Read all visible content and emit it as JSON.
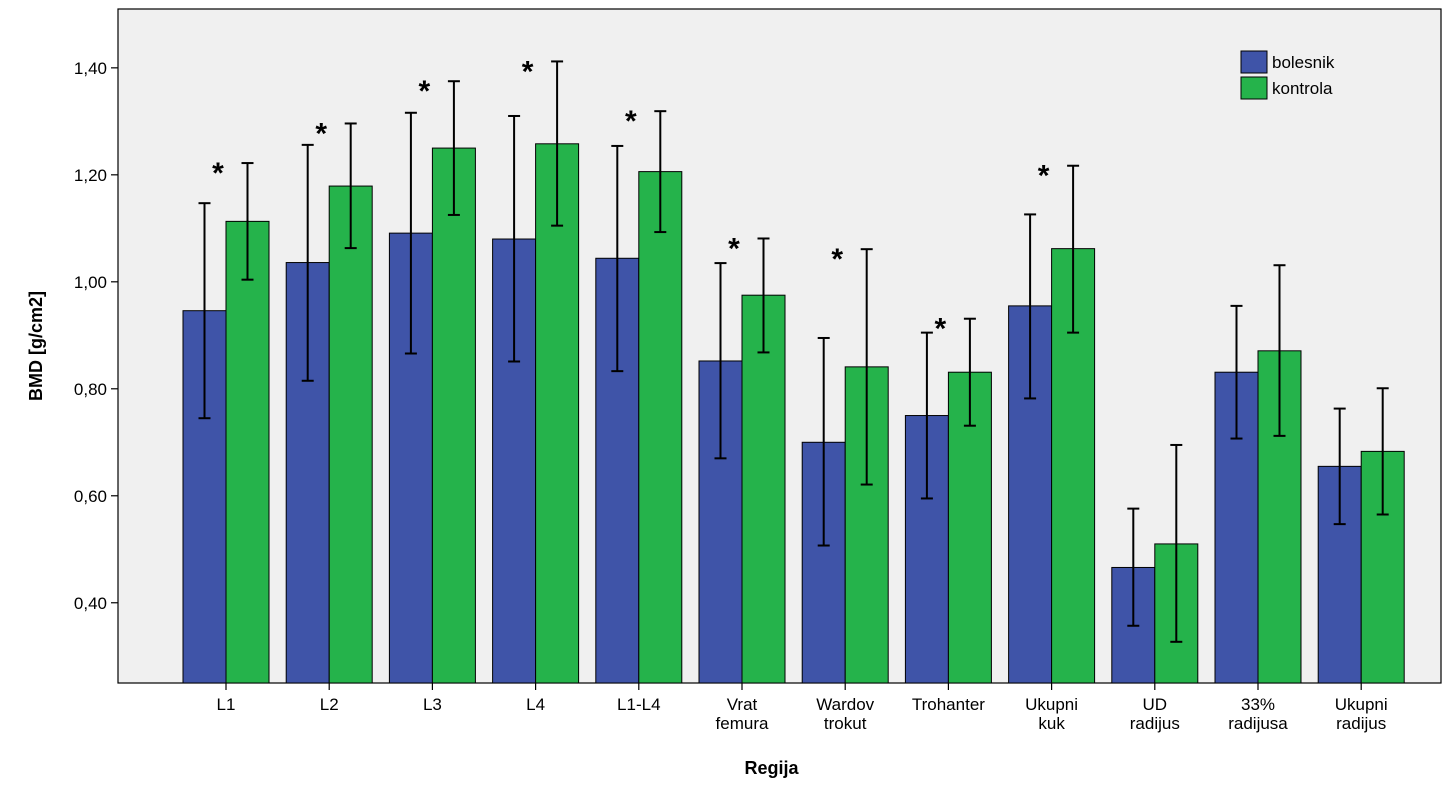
{
  "chart_data": {
    "type": "bar",
    "xlabel": "Regija",
    "ylabel": "BMD [g/cm2]",
    "ylim": [
      0.25,
      1.51
    ],
    "yticks": [
      "0,40",
      "0,60",
      "0,80",
      "1,00",
      "1,20",
      "1,40"
    ],
    "ytick_values": [
      0.4,
      0.6,
      0.8,
      1.0,
      1.2,
      1.4
    ],
    "categories": [
      [
        "L1"
      ],
      [
        "L2"
      ],
      [
        "L3"
      ],
      [
        "L4"
      ],
      [
        "L1-L4"
      ],
      [
        "Vrat",
        "femura"
      ],
      [
        "Wardov",
        "trokut"
      ],
      [
        "Trohanter"
      ],
      [
        "Ukupni",
        "kuk"
      ],
      [
        "UD",
        "radijus"
      ],
      [
        "33%",
        "radijusa"
      ],
      [
        "Ukupni",
        "radijus"
      ]
    ],
    "series": [
      {
        "name": "bolesnik",
        "color": "#3f54a8",
        "values": [
          0.946,
          1.036,
          1.091,
          1.08,
          1.044,
          0.852,
          0.7,
          0.75,
          0.955,
          0.466,
          0.831,
          0.655
        ],
        "err_low": [
          0.745,
          0.815,
          0.866,
          0.851,
          0.833,
          0.67,
          0.507,
          0.595,
          0.782,
          0.357,
          0.707,
          0.547
        ],
        "err_high": [
          1.147,
          1.256,
          1.316,
          1.31,
          1.254,
          1.035,
          0.895,
          0.905,
          1.126,
          0.576,
          0.955,
          0.763
        ]
      },
      {
        "name": "kontrola",
        "color": "#25b34b",
        "values": [
          1.113,
          1.179,
          1.25,
          1.258,
          1.206,
          0.975,
          0.841,
          0.831,
          1.062,
          0.51,
          0.871,
          0.683
        ],
        "err_low": [
          1.004,
          1.063,
          1.125,
          1.105,
          1.093,
          0.868,
          0.621,
          0.731,
          0.905,
          0.327,
          0.712,
          0.565
        ],
        "err_high": [
          1.222,
          1.296,
          1.375,
          1.412,
          1.319,
          1.081,
          1.061,
          0.931,
          1.217,
          0.695,
          1.031,
          0.801
        ]
      }
    ],
    "significance_marker": "*",
    "significant": [
      true,
      true,
      true,
      true,
      true,
      true,
      true,
      true,
      true,
      false,
      false,
      false
    ],
    "legend_position": "top-right",
    "grid": false,
    "plot_background": "#f0f0f0"
  }
}
